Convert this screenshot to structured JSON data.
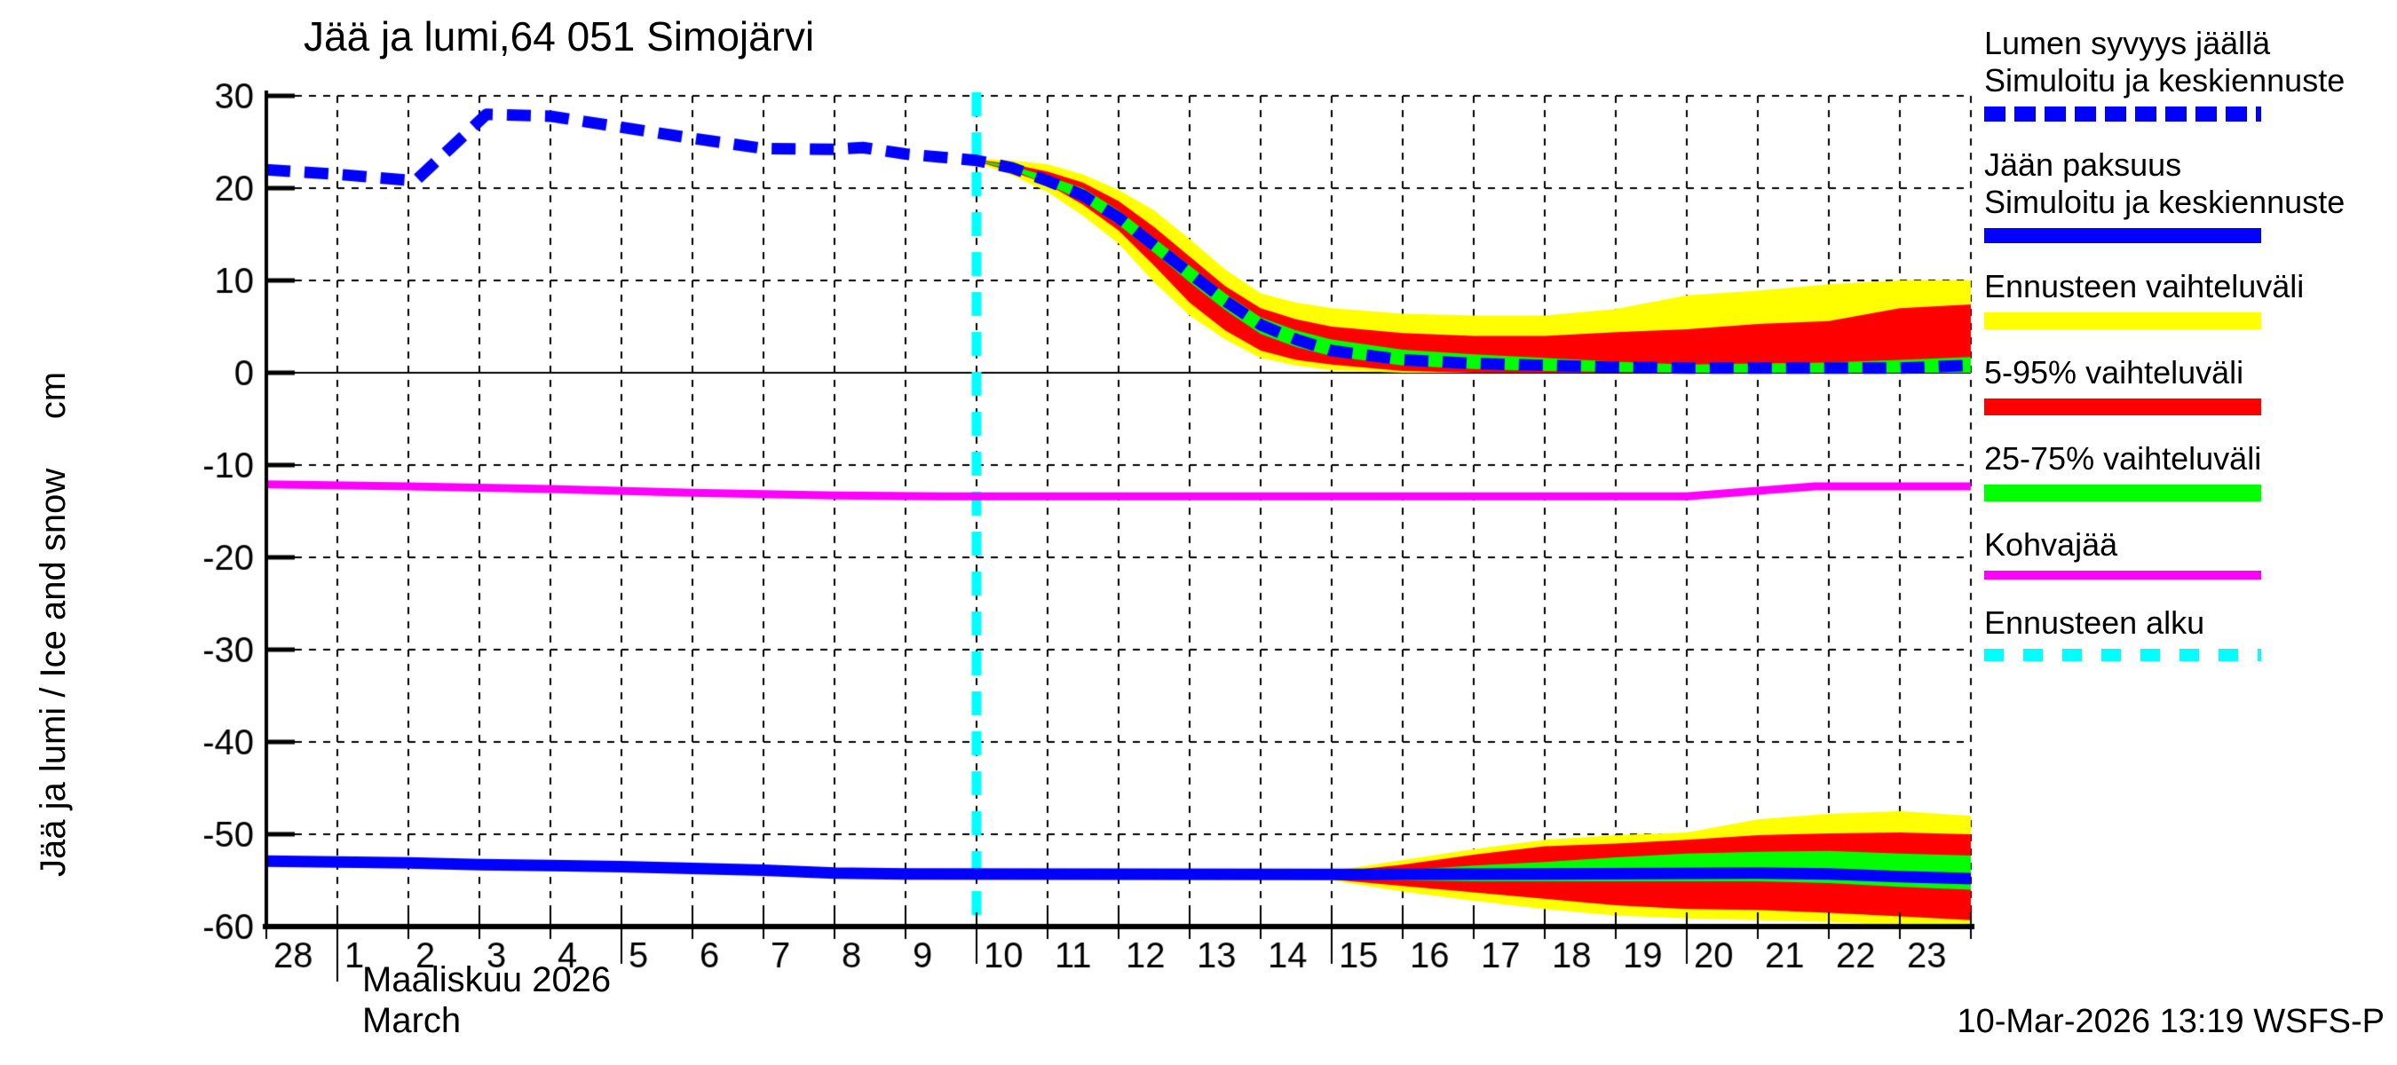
{
  "chart": {
    "title": "Jää ja lumi,64 051 Simojärvi",
    "ylabel": "Jää ja lumi / Ice and snow     cm",
    "month_label_fi": "Maaliskuu 2026",
    "month_label_en": "March"
  },
  "footer": {
    "timestamp": "10-Mar-2026 13:19 WSFS-P"
  },
  "legend": {
    "items": [
      {
        "line1": "Lumen syvyys jäällä",
        "line2": "Simuloitu ja keskiennuste",
        "sample": "dash-blue"
      },
      {
        "line1": "Jään paksuus",
        "line2": "Simuloitu ja keskiennuste",
        "sample": "solid-blue"
      },
      {
        "line1": "Ennusteen vaihteluväli",
        "line2": "",
        "sample": "yellow"
      },
      {
        "line1": "5-95% vaihteluväli",
        "line2": "",
        "sample": "red"
      },
      {
        "line1": "25-75% vaihteluväli",
        "line2": "",
        "sample": "green"
      },
      {
        "line1": "Kohvajää",
        "line2": "",
        "sample": "magenta"
      },
      {
        "line1": "Ennusteen alku",
        "line2": "",
        "sample": "dash-cyan"
      }
    ]
  },
  "chart_data": {
    "type": "line",
    "title": "Jää ja lumi,64 051 Simojärvi",
    "ylabel": "Jää ja lumi / Ice and snow  (cm)",
    "x_unit": "days, t=0 is 28 February 2026, t=24 is end of 23 March 2026",
    "ylim": [
      -60,
      30
    ],
    "grid": true,
    "legend_position": "right",
    "y_ticks": [
      30,
      20,
      10,
      0,
      -10,
      -20,
      -30,
      -40,
      -50,
      -60
    ],
    "x_tick_labels": [
      {
        "t": 0,
        "label": "28"
      },
      {
        "t": 1,
        "label": "1"
      },
      {
        "t": 2,
        "label": "2"
      },
      {
        "t": 3,
        "label": "3"
      },
      {
        "t": 4,
        "label": "4"
      },
      {
        "t": 5,
        "label": "5"
      },
      {
        "t": 6,
        "label": "6"
      },
      {
        "t": 7,
        "label": "7"
      },
      {
        "t": 8,
        "label": "8"
      },
      {
        "t": 9,
        "label": "9"
      },
      {
        "t": 10,
        "label": "10"
      },
      {
        "t": 11,
        "label": "11"
      },
      {
        "t": 12,
        "label": "12"
      },
      {
        "t": 13,
        "label": "13"
      },
      {
        "t": 14,
        "label": "14"
      },
      {
        "t": 15,
        "label": "15"
      },
      {
        "t": 16,
        "label": "16"
      },
      {
        "t": 17,
        "label": "17"
      },
      {
        "t": 18,
        "label": "18"
      },
      {
        "t": 19,
        "label": "19"
      },
      {
        "t": 20,
        "label": "20"
      },
      {
        "t": 21,
        "label": "21"
      },
      {
        "t": 22,
        "label": "22"
      },
      {
        "t": 23,
        "label": "23"
      }
    ],
    "long_tick_days": [
      5,
      10,
      15,
      20
    ],
    "month_separator_t": 1,
    "forecast_start_t": 10,
    "colors": {
      "median": "#0000ff",
      "range": "#ffff00",
      "p5_95": "#ff0000",
      "p25_75": "#00ff00",
      "kohvajaa": "#ff00ff",
      "forecast_start": "#00ffff",
      "grid": "#000000",
      "axis": "#000000",
      "background": "#ffffff"
    },
    "bands": [
      {
        "name": "snow_forecast_range",
        "color": "#ffff00",
        "upper": [
          [
            10,
            23.2
          ],
          [
            10.5,
            23.0
          ],
          [
            11,
            22.6
          ],
          [
            11.5,
            21.5
          ],
          [
            12,
            19.8
          ],
          [
            12.5,
            17.6
          ],
          [
            13,
            14.5
          ],
          [
            13.5,
            11.2
          ],
          [
            14,
            8.6
          ],
          [
            14.5,
            7.6
          ],
          [
            15,
            7.0
          ],
          [
            16,
            6.4
          ],
          [
            17,
            6.2
          ],
          [
            18,
            6.2
          ],
          [
            19,
            6.9
          ],
          [
            20,
            8.4
          ],
          [
            21,
            8.9
          ],
          [
            22,
            9.6
          ],
          [
            23,
            10.0
          ],
          [
            24,
            10.0
          ]
        ],
        "lower": [
          [
            10,
            22.8
          ],
          [
            10.5,
            21.4
          ],
          [
            11,
            19.6
          ],
          [
            11.5,
            17.0
          ],
          [
            12,
            14.0
          ],
          [
            12.5,
            9.8
          ],
          [
            13,
            6.2
          ],
          [
            13.5,
            3.6
          ],
          [
            14,
            1.6
          ],
          [
            14.5,
            0.8
          ],
          [
            15,
            0.3
          ],
          [
            16,
            0.0
          ],
          [
            24,
            0.0
          ]
        ]
      },
      {
        "name": "snow_5_95",
        "color": "#ff0000",
        "upper": [
          [
            10,
            23.1
          ],
          [
            10.5,
            22.6
          ],
          [
            11,
            21.8
          ],
          [
            11.5,
            20.6
          ],
          [
            12,
            18.6
          ],
          [
            12.5,
            15.8
          ],
          [
            13,
            12.6
          ],
          [
            13.5,
            9.4
          ],
          [
            14,
            7.0
          ],
          [
            14.5,
            5.8
          ],
          [
            15,
            5.0
          ],
          [
            16,
            4.3
          ],
          [
            17,
            4.0
          ],
          [
            18,
            4.0
          ],
          [
            19,
            4.4
          ],
          [
            20,
            4.7
          ],
          [
            21,
            5.3
          ],
          [
            22,
            5.6
          ],
          [
            23,
            7.0
          ],
          [
            24,
            7.4
          ]
        ],
        "lower": [
          [
            10,
            22.9
          ],
          [
            10.5,
            21.8
          ],
          [
            11,
            20.4
          ],
          [
            11.5,
            18.2
          ],
          [
            12,
            15.4
          ],
          [
            12.5,
            11.6
          ],
          [
            13,
            7.6
          ],
          [
            13.5,
            4.6
          ],
          [
            14,
            2.4
          ],
          [
            14.5,
            1.4
          ],
          [
            15,
            0.9
          ],
          [
            16,
            0.2
          ],
          [
            17,
            0.0
          ],
          [
            24,
            0.0
          ]
        ]
      },
      {
        "name": "snow_25_75",
        "color": "#00ff00",
        "upper": [
          [
            10,
            23.05
          ],
          [
            10.5,
            22.4
          ],
          [
            11,
            21.3
          ],
          [
            11.5,
            20.0
          ],
          [
            12,
            17.6
          ],
          [
            12.5,
            14.6
          ],
          [
            13,
            11.6
          ],
          [
            13.5,
            8.6
          ],
          [
            14,
            6.0
          ],
          [
            14.5,
            4.6
          ],
          [
            15,
            3.6
          ],
          [
            16,
            2.5
          ],
          [
            17,
            2.0
          ],
          [
            18,
            1.6
          ],
          [
            19,
            1.2
          ],
          [
            20,
            0.9
          ],
          [
            21,
            1.0
          ],
          [
            22,
            1.1
          ],
          [
            23,
            1.4
          ],
          [
            24,
            1.7
          ]
        ],
        "lower": [
          [
            10,
            22.95
          ],
          [
            10.5,
            22.0
          ],
          [
            11,
            20.4
          ],
          [
            11.5,
            18.6
          ],
          [
            12,
            16.0
          ],
          [
            12.5,
            13.0
          ],
          [
            13,
            9.8
          ],
          [
            13.5,
            6.8
          ],
          [
            14,
            4.2
          ],
          [
            14.5,
            2.8
          ],
          [
            15,
            1.8
          ],
          [
            16,
            0.8
          ],
          [
            17,
            0.4
          ],
          [
            18,
            0.2
          ],
          [
            19,
            0.1
          ],
          [
            20,
            0.0
          ],
          [
            24,
            0.0
          ]
        ]
      },
      {
        "name": "ice_forecast_range",
        "color": "#ffff00",
        "upper": [
          [
            10,
            -54.3
          ],
          [
            12,
            -54.2
          ],
          [
            13.5,
            -54.1
          ],
          [
            15,
            -54.0
          ],
          [
            16,
            -52.8
          ],
          [
            17,
            -51.6
          ],
          [
            18,
            -50.6
          ],
          [
            19,
            -50.1
          ],
          [
            20,
            -49.8
          ],
          [
            21,
            -48.4
          ],
          [
            22,
            -47.8
          ],
          [
            23,
            -47.5
          ],
          [
            24,
            -48.0
          ]
        ],
        "lower": [
          [
            10,
            -54.4
          ],
          [
            12,
            -54.5
          ],
          [
            13.5,
            -54.7
          ],
          [
            15,
            -55.0
          ],
          [
            16,
            -56.2
          ],
          [
            17,
            -57.2
          ],
          [
            18,
            -58.1
          ],
          [
            19,
            -58.8
          ],
          [
            20,
            -59.1
          ],
          [
            21,
            -59.3
          ],
          [
            22,
            -59.5
          ],
          [
            23,
            -59.9
          ],
          [
            24,
            -60.0
          ]
        ]
      },
      {
        "name": "ice_5_95",
        "color": "#ff0000",
        "upper": [
          [
            10,
            -54.3
          ],
          [
            12,
            -54.25
          ],
          [
            13.5,
            -54.15
          ],
          [
            15,
            -54.1
          ],
          [
            16,
            -53.3
          ],
          [
            17,
            -52.2
          ],
          [
            18,
            -51.3
          ],
          [
            19,
            -51.0
          ],
          [
            20,
            -50.6
          ],
          [
            21,
            -50.1
          ],
          [
            22,
            -49.9
          ],
          [
            23,
            -49.8
          ],
          [
            24,
            -50.0
          ]
        ],
        "lower": [
          [
            10,
            -54.4
          ],
          [
            12,
            -54.45
          ],
          [
            13.5,
            -54.6
          ],
          [
            15,
            -54.9
          ],
          [
            16,
            -55.6
          ],
          [
            17,
            -56.3
          ],
          [
            18,
            -57.0
          ],
          [
            19,
            -57.7
          ],
          [
            20,
            -58.1
          ],
          [
            21,
            -58.2
          ],
          [
            22,
            -58.5
          ],
          [
            23,
            -58.9
          ],
          [
            24,
            -59.3
          ]
        ]
      },
      {
        "name": "ice_25_75",
        "color": "#00ff00",
        "upper": [
          [
            10,
            -54.3
          ],
          [
            12,
            -54.25
          ],
          [
            13.5,
            -54.2
          ],
          [
            15,
            -54.2
          ],
          [
            16,
            -53.9
          ],
          [
            17,
            -53.4
          ],
          [
            18,
            -53.0
          ],
          [
            19,
            -52.5
          ],
          [
            20,
            -52.1
          ],
          [
            21,
            -51.9
          ],
          [
            22,
            -51.8
          ],
          [
            23,
            -52.1
          ],
          [
            24,
            -52.3
          ]
        ],
        "lower": [
          [
            10,
            -54.4
          ],
          [
            12,
            -54.45
          ],
          [
            13.5,
            -54.5
          ],
          [
            15,
            -54.8
          ],
          [
            16,
            -55.0
          ],
          [
            17,
            -55.1
          ],
          [
            18,
            -55.1
          ],
          [
            19,
            -55.1
          ],
          [
            20,
            -55.1
          ],
          [
            21,
            -55.1
          ],
          [
            22,
            -55.3
          ],
          [
            23,
            -55.7
          ],
          [
            24,
            -56.0
          ]
        ]
      }
    ],
    "series": [
      {
        "name": "snow_depth_median",
        "label": "Lumen syvyys jäällä — Simuloitu ja keskiennuste",
        "style": "dashed",
        "color": "#0000ff",
        "width": 13,
        "points": [
          [
            0,
            22.0
          ],
          [
            1,
            21.5
          ],
          [
            2.1,
            20.8
          ],
          [
            3.1,
            28.0
          ],
          [
            4,
            27.8
          ],
          [
            5,
            26.6
          ],
          [
            6,
            25.4
          ],
          [
            7,
            24.3
          ],
          [
            8,
            24.2
          ],
          [
            8.4,
            24.4
          ],
          [
            9,
            23.7
          ],
          [
            10,
            23.0
          ],
          [
            10.5,
            22.2
          ],
          [
            11,
            20.8
          ],
          [
            11.5,
            19.2
          ],
          [
            12,
            16.8
          ],
          [
            12.5,
            13.8
          ],
          [
            13,
            10.8
          ],
          [
            13.5,
            7.8
          ],
          [
            14,
            5.2
          ],
          [
            14.5,
            3.6
          ],
          [
            15,
            2.4
          ],
          [
            16,
            1.4
          ],
          [
            17,
            1.0
          ],
          [
            18,
            0.8
          ],
          [
            19,
            0.6
          ],
          [
            20,
            0.5
          ],
          [
            21,
            0.5
          ],
          [
            22,
            0.5
          ],
          [
            23,
            0.5
          ],
          [
            24,
            0.8
          ]
        ]
      },
      {
        "name": "ice_thickness_median",
        "label": "Jään paksuus — Simuloitu ja keskiennuste",
        "style": "solid",
        "color": "#0000ff",
        "width": 13,
        "points": [
          [
            0,
            -52.9
          ],
          [
            1,
            -53.0
          ],
          [
            2,
            -53.1
          ],
          [
            3,
            -53.3
          ],
          [
            4,
            -53.4
          ],
          [
            5,
            -53.5
          ],
          [
            6,
            -53.7
          ],
          [
            7,
            -53.9
          ],
          [
            8,
            -54.2
          ],
          [
            9,
            -54.3
          ],
          [
            15,
            -54.35
          ],
          [
            18,
            -54.3
          ],
          [
            21,
            -54.2
          ],
          [
            22,
            -54.3
          ],
          [
            23,
            -54.6
          ],
          [
            24,
            -54.8
          ]
        ]
      },
      {
        "name": "kohvajaa",
        "label": "Kohvajää",
        "style": "solid",
        "color": "#ff00ff",
        "width": 9,
        "points": [
          [
            0,
            -12.1
          ],
          [
            2,
            -12.3
          ],
          [
            4,
            -12.6
          ],
          [
            6,
            -13.0
          ],
          [
            8,
            -13.3
          ],
          [
            9.5,
            -13.4
          ],
          [
            20,
            -13.4
          ],
          [
            21.8,
            -12.3
          ],
          [
            24,
            -12.3
          ]
        ]
      }
    ]
  }
}
